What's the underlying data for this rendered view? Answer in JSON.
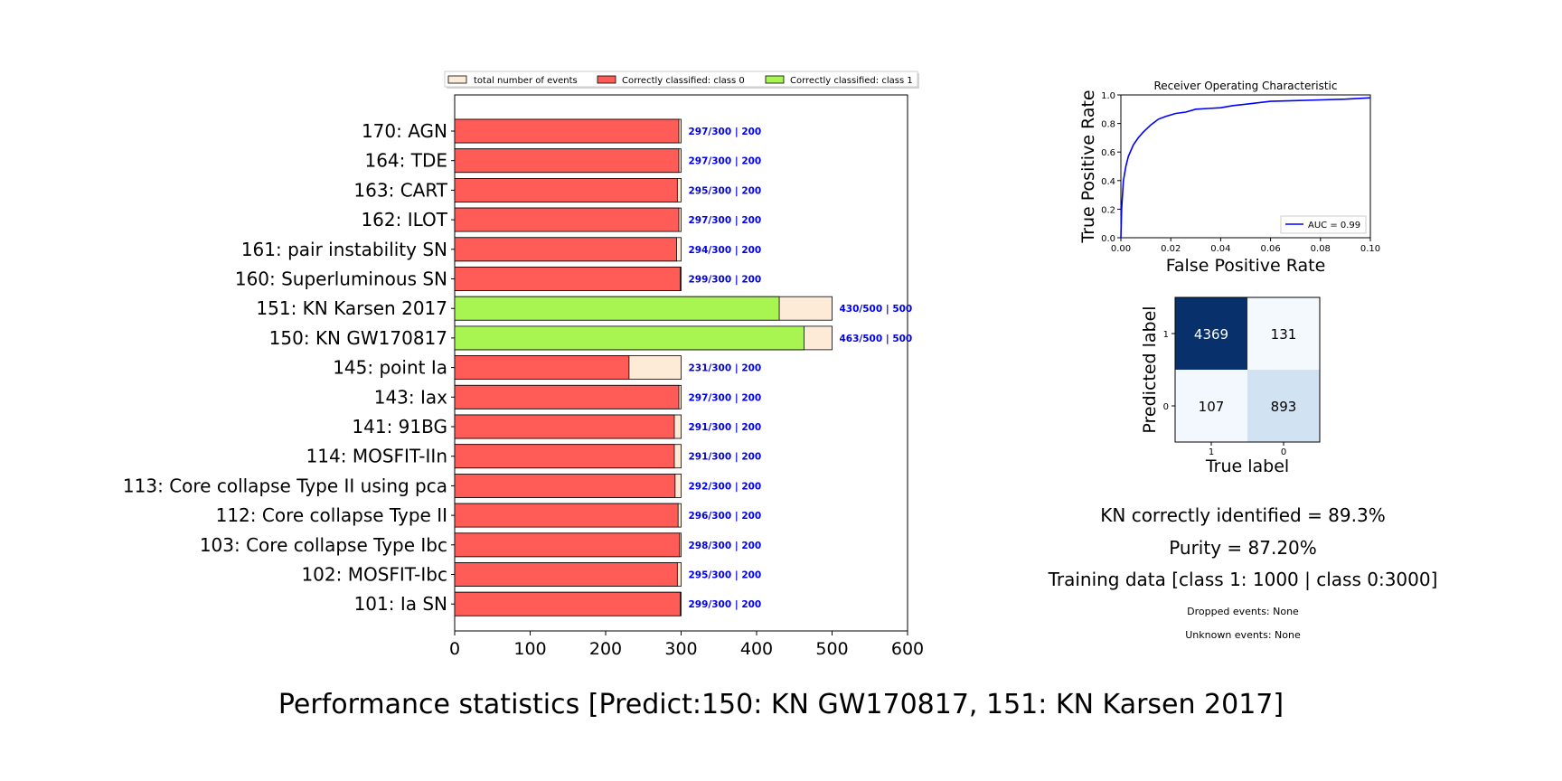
{
  "figure": {
    "suptitle": "Performance statistics [Predict:150: KN GW170817, 151: KN Karsen 2017]"
  },
  "stats": {
    "kn_identified": "KN correctly identified = 89.3%",
    "purity": "Purity = 87.20%",
    "training": "Training data [class 1: 1000 | class 0:3000]",
    "dropped": "Dropped events: None",
    "unknown": "Unknown events: None"
  },
  "chart_data": [
    {
      "type": "bar",
      "orientation": "horizontal",
      "xlim": [
        0,
        600
      ],
      "xticks": [
        0,
        100,
        200,
        300,
        400,
        500,
        600
      ],
      "legend": {
        "placement": "top",
        "entries": [
          {
            "label": "total number of events",
            "color": "#fdebd7"
          },
          {
            "label": "Correctly classified: class 0",
            "color": "#ff5c57"
          },
          {
            "label": "Correctly classified: class 1",
            "color": "#a8f552"
          }
        ]
      },
      "categories": [
        "170: AGN",
        "164: TDE",
        "163: CART",
        "162: ILOT",
        "161: pair instability SN",
        "160: Superluminous SN",
        "151: KN Karsen 2017",
        "150: KN GW170817",
        "145: point Ia",
        "143: Iax",
        "141: 91BG",
        "114: MOSFIT-IIn",
        "113: Core collapse Type II using pca ",
        "112: Core collapse Type II",
        "103: Core collapse Type Ibc",
        "102: MOSFIT-Ibc",
        "101: Ia SN"
      ],
      "total": [
        300,
        300,
        300,
        300,
        300,
        300,
        500,
        500,
        300,
        300,
        300,
        300,
        300,
        300,
        300,
        300,
        300
      ],
      "correct": [
        297,
        297,
        295,
        297,
        294,
        299,
        430,
        463,
        231,
        297,
        291,
        291,
        292,
        296,
        298,
        295,
        299
      ],
      "class": [
        0,
        0,
        0,
        0,
        0,
        0,
        1,
        1,
        0,
        0,
        0,
        0,
        0,
        0,
        0,
        0,
        0
      ],
      "bar_labels": [
        "297/300 | 200",
        "297/300 | 200",
        "295/300 | 200",
        "297/300 | 200",
        "294/300 | 200",
        "299/300 | 200",
        "430/500 | 500",
        "463/500 | 500",
        "231/300 | 200",
        "297/300 | 200",
        "291/300 | 200",
        "291/300 | 200",
        "292/300 | 200",
        "296/300 | 200",
        "298/300 | 200",
        "295/300 | 200",
        "299/300 | 200"
      ],
      "label_color": "#0000ee"
    },
    {
      "type": "line",
      "title": "Receiver Operating Characteristic",
      "xlabel": "False Positive Rate",
      "ylabel": "True Positive Rate",
      "xlim": [
        0,
        0.1
      ],
      "ylim": [
        0,
        1.0
      ],
      "xticks": [
        "0.00",
        "0.02",
        "0.04",
        "0.06",
        "0.08",
        "0.10"
      ],
      "yticks": [
        "0.0",
        "0.2",
        "0.4",
        "0.6",
        "0.8",
        "1.0"
      ],
      "series": [
        {
          "name": "AUC = 0.99",
          "color": "#0000ff",
          "x": [
            0,
            0.0003,
            0.001,
            0.002,
            0.003,
            0.005,
            0.007,
            0.009,
            0.012,
            0.015,
            0.018,
            0.022,
            0.026,
            0.03,
            0.035,
            0.04,
            0.045,
            0.05,
            0.055,
            0.06,
            0.07,
            0.08,
            0.09,
            0.1
          ],
          "y": [
            0,
            0.2,
            0.4,
            0.5,
            0.57,
            0.65,
            0.7,
            0.74,
            0.79,
            0.83,
            0.85,
            0.87,
            0.88,
            0.9,
            0.905,
            0.91,
            0.925,
            0.935,
            0.945,
            0.955,
            0.96,
            0.965,
            0.97,
            0.98
          ]
        }
      ],
      "legend": {
        "placement": "lower-right"
      }
    },
    {
      "type": "heatmap",
      "xlabel": "True label",
      "ylabel": "Predicted label",
      "xticklabels": [
        "1",
        "0"
      ],
      "yticklabels": [
        "1",
        "0"
      ],
      "values": [
        [
          4369,
          131
        ],
        [
          107,
          893
        ]
      ],
      "colors": [
        [
          "#08306b",
          "#f4f9fe"
        ],
        [
          "#f3f8fe",
          "#d1e2f3"
        ]
      ],
      "text_colors": [
        [
          "#ffffff",
          "#000000"
        ],
        [
          "#000000",
          "#000000"
        ]
      ]
    }
  ]
}
